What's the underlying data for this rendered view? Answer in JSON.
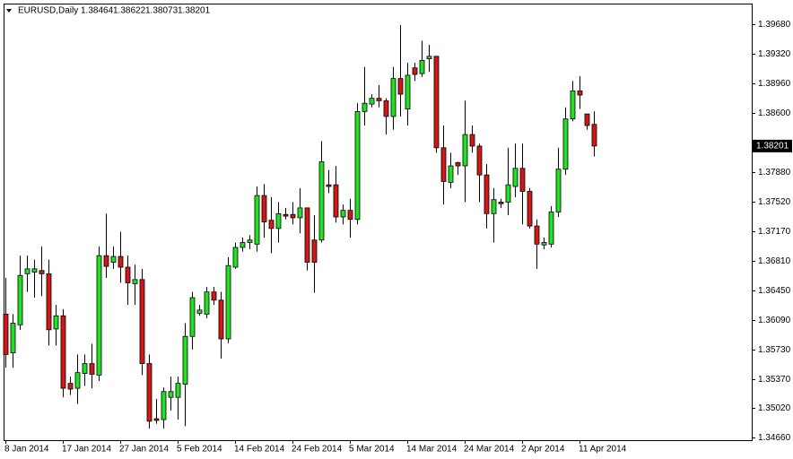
{
  "chart_data": {
    "type": "candlestick",
    "title": "EURUSD,Daily",
    "categories": [
      "8 Jan 2014",
      null,
      null,
      null,
      null,
      null,
      null,
      null,
      "17 Jan 2014",
      null,
      null,
      null,
      null,
      null,
      null,
      null,
      "27 Jan 2014",
      null,
      null,
      null,
      null,
      null,
      null,
      null,
      "5 Feb 2014",
      null,
      null,
      null,
      null,
      null,
      null,
      null,
      "14 Feb 2014",
      null,
      null,
      null,
      null,
      null,
      null,
      null,
      "24 Feb 2014",
      null,
      null,
      null,
      null,
      null,
      null,
      null,
      "5 Mar 2014",
      null,
      null,
      null,
      null,
      null,
      null,
      null,
      "14 Mar 2014",
      null,
      null,
      null,
      null,
      null,
      null,
      null,
      "24 Mar 2014",
      null,
      null,
      null,
      null,
      null,
      null,
      null,
      "2 Apr 2014",
      null,
      null,
      null,
      null,
      null,
      null,
      null,
      "11 Apr 2014",
      null,
      null
    ],
    "open": [
      1.3616,
      1.3569,
      1.3603,
      1.3665,
      1.3667,
      1.3669,
      1.3665,
      1.3598,
      1.3614,
      1.3532,
      1.3526,
      1.3544,
      1.3556,
      1.3542,
      1.3687,
      1.3679,
      1.3686,
      1.3673,
      1.3653,
      1.3658,
      1.3556,
      1.3489,
      1.3488,
      1.3515,
      1.3515,
      1.3531,
      1.3589,
      1.3617,
      1.3616,
      1.3643,
      1.3633,
      1.3586,
      1.3673,
      1.3697,
      1.3703,
      1.3701,
      1.376,
      1.373,
      1.372,
      1.3737,
      1.3737,
      1.3733,
      1.3745,
      1.3706,
      1.3706,
      1.3773,
      1.3773,
      1.3734,
      1.3742,
      1.3731,
      1.3862,
      1.3871,
      1.3878,
      1.3875,
      1.3856,
      1.3902,
      1.3865,
      1.3915,
      1.3908,
      1.3926,
      1.3929,
      1.3818,
      1.3776,
      1.38,
      1.3796,
      1.3834,
      1.382,
      1.3785,
      1.3738,
      1.3752,
      1.3752,
      1.3771,
      1.3793,
      1.3765,
      1.3723,
      1.37,
      1.3701,
      1.374,
      1.3792,
      1.3853,
      1.3887,
      1.3859,
      1.38464
    ],
    "high": [
      1.366,
      1.3616,
      1.3687,
      1.3687,
      1.3682,
      1.3698,
      1.3682,
      1.3627,
      1.3622,
      1.354,
      1.3567,
      1.3567,
      1.358,
      1.3698,
      1.3738,
      1.3698,
      1.3716,
      1.3687,
      1.3676,
      1.3671,
      1.3567,
      1.3513,
      1.3527,
      1.354,
      1.354,
      1.3605,
      1.3643,
      1.3627,
      1.3649,
      1.3649,
      1.3643,
      1.3685,
      1.3703,
      1.3709,
      1.3712,
      1.3771,
      1.3774,
      1.3758,
      1.3752,
      1.3745,
      1.3752,
      1.3769,
      1.3745,
      1.3736,
      1.3826,
      1.3791,
      1.3796,
      1.3749,
      1.3756,
      1.3872,
      1.3916,
      1.3883,
      1.3894,
      1.3878,
      1.3916,
      1.3967,
      1.3921,
      1.3921,
      1.3948,
      1.3943,
      1.3929,
      1.3845,
      1.3812,
      1.3801,
      1.3875,
      1.3845,
      1.3823,
      1.3798,
      1.3769,
      1.3756,
      1.3818,
      1.3823,
      1.3823,
      1.3769,
      1.3731,
      1.3709,
      1.3747,
      1.3818,
      1.3867,
      1.3899,
      1.3905,
      1.3859,
      1.38622
    ],
    "low": [
      1.3551,
      1.3551,
      1.3597,
      1.3643,
      1.3636,
      1.3638,
      1.3578,
      1.3578,
      1.3515,
      1.3518,
      1.3507,
      1.3529,
      1.3526,
      1.3535,
      1.366,
      1.3671,
      1.3654,
      1.3627,
      1.3627,
      1.3542,
      1.3477,
      1.3483,
      1.3477,
      1.3499,
      1.3488,
      1.348,
      1.3573,
      1.3614,
      1.3611,
      1.3627,
      1.3562,
      1.3581,
      1.3671,
      1.3692,
      1.3695,
      1.3692,
      1.3709,
      1.369,
      1.3703,
      1.3731,
      1.3725,
      1.3714,
      1.3669,
      1.3642,
      1.3703,
      1.3763,
      1.3727,
      1.3725,
      1.3709,
      1.3725,
      1.3845,
      1.3867,
      1.3867,
      1.3834,
      1.384,
      1.3856,
      1.3845,
      1.3899,
      1.3904,
      1.391,
      1.3812,
      1.3749,
      1.3769,
      1.3785,
      1.3752,
      1.3812,
      1.3752,
      1.372,
      1.3703,
      1.3745,
      1.3736,
      1.3758,
      1.3725,
      1.372,
      1.3671,
      1.3695,
      1.3697,
      1.3734,
      1.3785,
      1.385,
      1.3865,
      1.384,
      1.38073
    ],
    "close": [
      1.3567,
      1.3605,
      1.3663,
      1.3671,
      1.3671,
      1.3665,
      1.3597,
      1.3614,
      1.3526,
      1.3525,
      1.3545,
      1.3556,
      1.3543,
      1.3687,
      1.3674,
      1.3686,
      1.3673,
      1.3654,
      1.3658,
      1.3556,
      1.3486,
      1.3487,
      1.3522,
      1.3522,
      1.3532,
      1.3589,
      1.3636,
      1.3621,
      1.3643,
      1.3633,
      1.3586,
      1.3675,
      1.3697,
      1.3703,
      1.3706,
      1.376,
      1.3728,
      1.372,
      1.3738,
      1.3735,
      1.3733,
      1.3745,
      1.3679,
      1.3679,
      1.3801,
      1.3771,
      1.3734,
      1.3742,
      1.3731,
      1.3862,
      1.3872,
      1.3878,
      1.3875,
      1.3856,
      1.3902,
      1.3883,
      1.3906,
      1.3907,
      1.3924,
      1.3929,
      1.3818,
      1.3777,
      1.3796,
      1.3796,
      1.3834,
      1.382,
      1.3785,
      1.3738,
      1.3755,
      1.375,
      1.3773,
      1.3793,
      1.3765,
      1.3723,
      1.3701,
      1.3703,
      1.374,
      1.3792,
      1.3853,
      1.3887,
      1.3882,
      1.3845,
      1.38201
    ],
    "up_color": "#22e022",
    "down_color": "#d01818",
    "ylim": [
      1.3463,
      1.3993
    ],
    "yticks": [
      {
        "value": 1.3968,
        "label": "1.39680"
      },
      {
        "value": 1.3932,
        "label": "1.39320"
      },
      {
        "value": 1.3896,
        "label": "1.38960"
      },
      {
        "value": 1.386,
        "label": "1.38600"
      },
      {
        "value": 1.3788,
        "label": "1.37880"
      },
      {
        "value": 1.3752,
        "label": "1.37520"
      },
      {
        "value": 1.3717,
        "label": "1.37170"
      },
      {
        "value": 1.3681,
        "label": "1.36810"
      },
      {
        "value": 1.3645,
        "label": "1.36450"
      },
      {
        "value": 1.3609,
        "label": "1.36090"
      },
      {
        "value": 1.3573,
        "label": "1.35730"
      },
      {
        "value": 1.3537,
        "label": "1.35370"
      },
      {
        "value": 1.3502,
        "label": "1.35020"
      },
      {
        "value": 1.3466,
        "label": "1.34660"
      }
    ]
  }
}
